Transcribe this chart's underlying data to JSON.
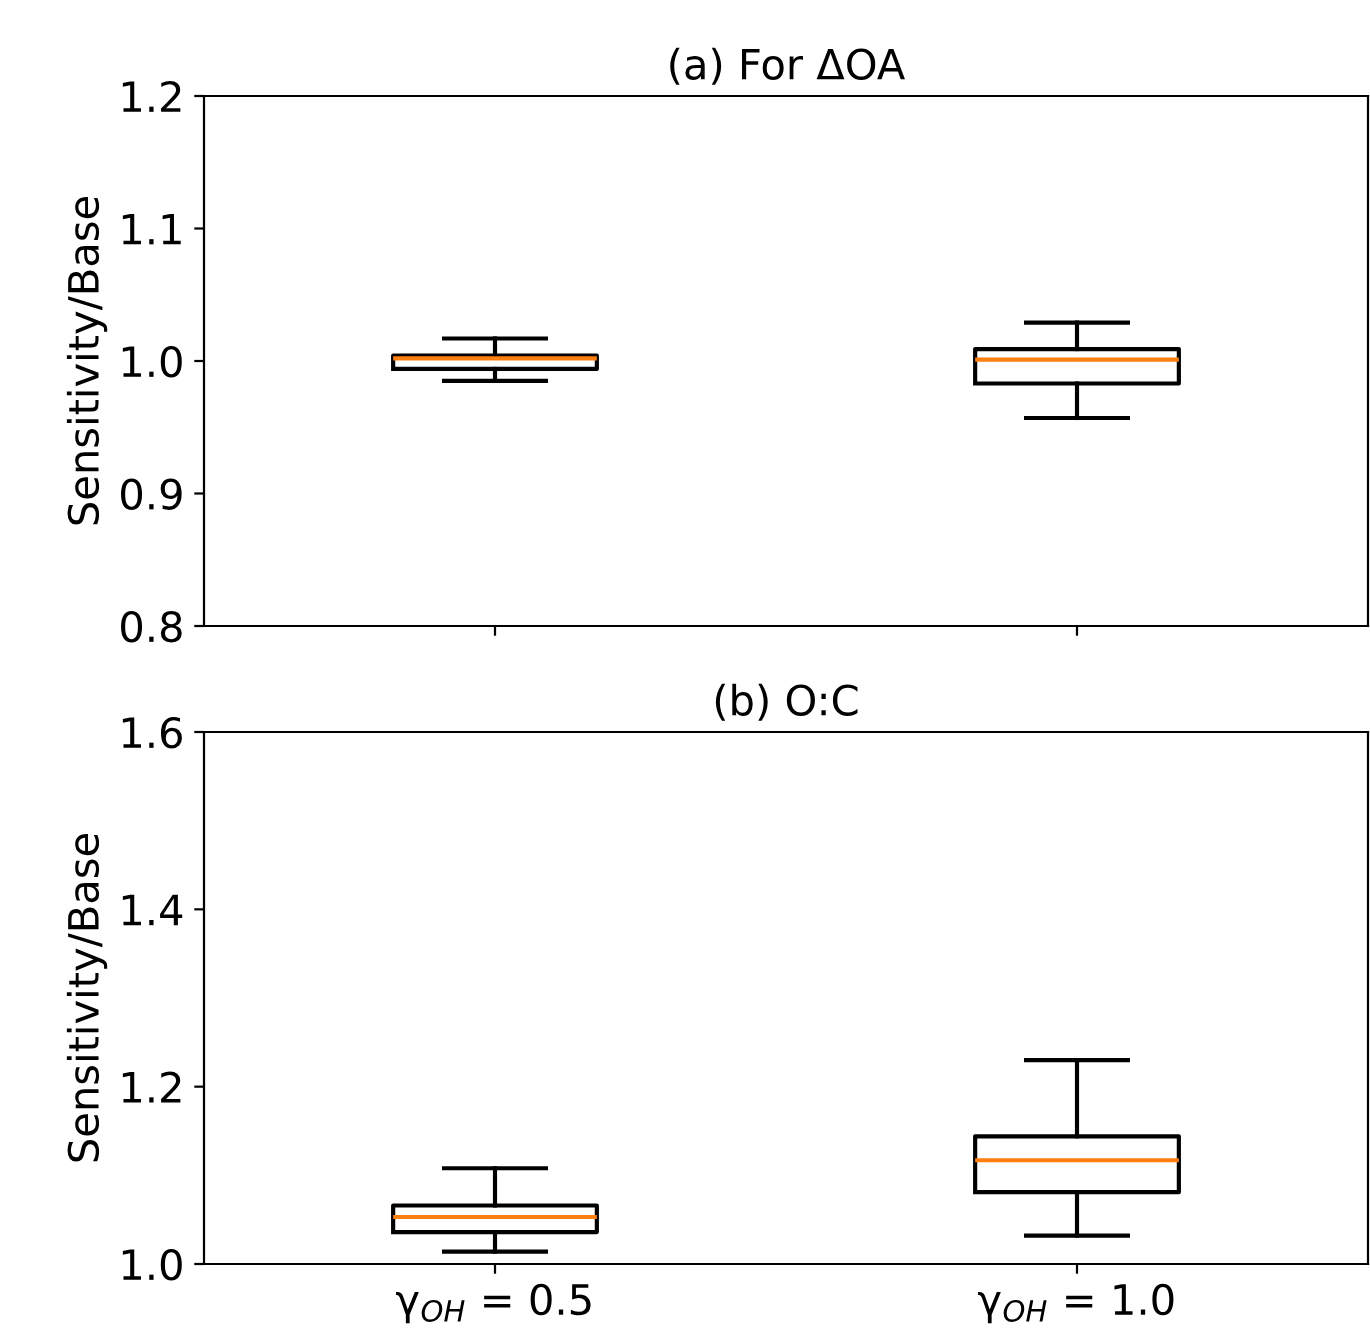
{
  "chart_data": [
    {
      "type": "box",
      "title": "(a) For ΔOA",
      "ylabel": "Sensitivity/Base",
      "categories": [
        null,
        null
      ],
      "tick_labels": "y",
      "boxes": [
        {
          "low": 0.985,
          "q1": 0.994,
          "median": 1.002,
          "q3": 1.004,
          "high": 1.017
        },
        {
          "low": 0.957,
          "q1": 0.983,
          "median": 1.001,
          "q3": 1.009,
          "high": 1.029
        }
      ],
      "color": "#000000",
      "ylim": [
        0.8,
        1.2
      ],
      "yticks": [
        0.8,
        0.9,
        {
          "value": 1,
          "label": "1.0"
        },
        1.1,
        1.2
      ]
    },
    {
      "type": "box",
      "title": "(b) O:C",
      "ylabel": "Sensitivity/Base",
      "categories": [
        "γ$_{OH}$ = 0.5",
        "γ$_{OH}$ = 1.0"
      ],
      "boxes": [
        {
          "low": 1.014,
          "q1": 1.036,
          "median": 1.053,
          "q3": 1.066,
          "high": 1.108
        },
        {
          "low": 1.032,
          "q1": 1.081,
          "median": 1.117,
          "q3": 1.144,
          "high": 1.23
        }
      ],
      "color": "#000000",
      "ylim": [
        1.0,
        1.6
      ],
      "yticks": [
        {
          "value": 1,
          "label": "1.0"
        },
        1.2,
        1.4,
        1.6
      ]
    }
  ]
}
